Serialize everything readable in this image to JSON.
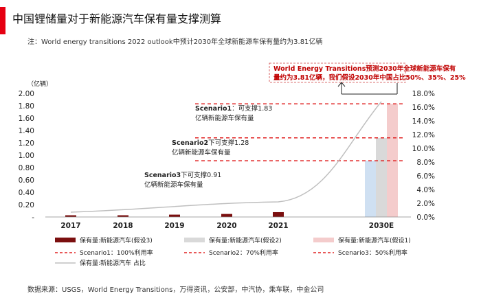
{
  "title": "中国锂储量对于新能源汽车保有量支撑测算",
  "note": "注：World energy transitions 2022 outlook中预计2030年全球新能源车保有量约为3.81亿辆",
  "source": "数据来源：USGS，World Energy Transitions，万得资讯，公安部，中汽协，乘车联，中金公司",
  "chart_data": {
    "type": "bar",
    "categories": [
      "2017",
      "2018",
      "2019",
      "2020",
      "2021",
      "2030E"
    ],
    "y_unit": "（亿辆）",
    "ylim": [
      0,
      2.0
    ],
    "yticks": [
      "2.00",
      "1.80",
      "1.60",
      "1.40",
      "1.20",
      "1.00",
      "0.80",
      "0.60",
      "0.40",
      "0.20",
      "-"
    ],
    "y2lim": [
      0,
      0.18
    ],
    "y2ticks": [
      "18.0%",
      "16.0%",
      "14.0%",
      "12.0%",
      "10.0%",
      "8.0%",
      "6.0%",
      "4.0%",
      "2.0%",
      "0.0%"
    ],
    "series": [
      {
        "name": "保有量:新能源汽车(假设3)",
        "kind": "bar",
        "color": "#7b0f0f",
        "values": [
          0.015,
          0.026,
          0.038,
          0.049,
          0.078,
          null
        ]
      },
      {
        "name": "保有量:新能源汽车(假设3)",
        "kind": "bar",
        "color": "#cfe0f2",
        "values": [
          null,
          null,
          null,
          null,
          null,
          0.91
        ]
      },
      {
        "name": "保有量:新能源汽车(假设2)",
        "kind": "bar",
        "color": "#d9d9d9",
        "values": [
          null,
          null,
          null,
          null,
          null,
          1.28
        ]
      },
      {
        "name": "保有量:新能源汽车(假设1)",
        "kind": "bar",
        "color": "#f4cccc",
        "values": [
          null,
          null,
          null,
          null,
          null,
          1.83
        ]
      },
      {
        "name": "保有量:新能源汽车 占比",
        "kind": "line",
        "axis": "right",
        "color": "#bfbfbf",
        "x": [
          "2016",
          "2021",
          "2030E"
        ],
        "values": [
          0.007,
          0.022,
          0.168
        ]
      }
    ],
    "reference_lines": [
      {
        "name": "Scenario1：100%利用率",
        "value": 1.83,
        "color": "#e02020"
      },
      {
        "name": "Scenario2：70%利用率",
        "value": 1.28,
        "color": "#e02020"
      },
      {
        "name": "Scenario3：50%利用率",
        "value": 0.91,
        "color": "#e02020"
      }
    ],
    "annotations": {
      "top_line1": "World Energy Transitions预测2030年全球新能源车保有",
      "top_line2": "量约为3.81亿辆，我们假设2030年中国占比50%、35%、25%",
      "s1_bold": "Scenario1",
      "s1_rest": "：可支撑1.83",
      "s1_line2": "亿辆新能源车保有量",
      "s2_bold": "Scenario2",
      "s2_rest": "下可支撑1.28",
      "s2_line2": "亿辆新能源车保有量",
      "s3_bold": "Scenario3",
      "s3_rest": "下可支撑0.91",
      "s3_line2": "亿辆新能源车保有量"
    },
    "legend_position": "bottom"
  }
}
